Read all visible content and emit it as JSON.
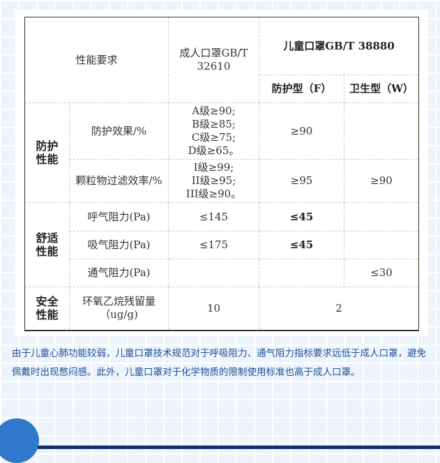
{
  "table": {
    "header": {
      "requirement": "性能要求",
      "adult": "成人口罩GB/T 32610",
      "child": "儿童口罩GB/T 38880",
      "child_f": "防护型（F）",
      "child_w": "卫生型（W）"
    },
    "groups": [
      {
        "name": "防护性能",
        "rows": [
          {
            "item": "防护效果/%",
            "adult": [
              "A级≥90;",
              "B级≥85;",
              "C级≥75;",
              "D级≥65。"
            ],
            "f": "≥90",
            "w": ""
          },
          {
            "item": "颗粒物过滤效率/%",
            "adult": [
              "I级≥99;",
              "II级≥95;",
              "III级≥90。"
            ],
            "f": "≥95",
            "w": "≥90"
          }
        ]
      },
      {
        "name": "舒适性能",
        "rows": [
          {
            "item": "呼气阻力(Pa)",
            "adult": "≤145",
            "f": "≤45",
            "w": ""
          },
          {
            "item": "吸气阻力(Pa)",
            "adult": "≤175",
            "f": "≤45",
            "w": ""
          },
          {
            "item": "通气阻力(Pa)",
            "adult": "",
            "f": "",
            "w": "≤30"
          }
        ]
      },
      {
        "name": "安全性能",
        "rows": [
          {
            "item": "环氧乙烷残留量（ug/g)",
            "adult": "10",
            "child": "2"
          }
        ]
      }
    ]
  },
  "paragraph": "由于儿童心肺功能较弱，儿童口罩技术规范对于呼吸阻力、通气阻力指标要求远低于成人口罩，避免佩戴时出现憋闷感。此外，儿童口罩对于化学物质的限制使用标准也高于成人口罩。",
  "colors": {
    "text": "#1d4f9a",
    "accent": "#2f78cc",
    "bar": "#0c2f6e"
  }
}
